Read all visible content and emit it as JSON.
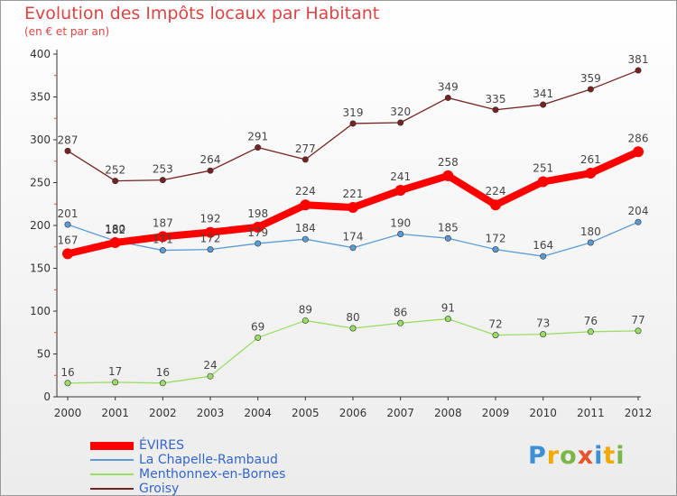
{
  "header": {
    "title": "Evolution des Impôts locaux par Habitant",
    "subtitle": "(en € et par an)"
  },
  "logo": {
    "text": "Proxiti",
    "colors": [
      "#3d8fd6",
      "#f2a900",
      "#7ab648",
      "#e5542b",
      "#3d8fd6",
      "#f2a900",
      "#7ab648"
    ]
  },
  "chart_data": {
    "type": "line",
    "title": "Evolution des Impôts locaux par Habitant",
    "subtitle": "(en € et par an)",
    "xlabel": "",
    "ylabel": "",
    "x": [
      "2000",
      "2001",
      "2002",
      "2003",
      "2004",
      "2005",
      "2006",
      "2007",
      "2008",
      "2009",
      "2010",
      "2011",
      "2012"
    ],
    "ylim": [
      0,
      400
    ],
    "yticks": [
      0,
      50,
      100,
      150,
      200,
      250,
      300,
      350,
      400
    ],
    "grid": false,
    "legend_position": "bottom-left",
    "series": [
      {
        "name": "ÉVIRES",
        "color": "#ff0000",
        "emphasis": true,
        "values": [
          167,
          180,
          187,
          192,
          198,
          224,
          221,
          241,
          258,
          224,
          251,
          261,
          286
        ]
      },
      {
        "name": "La Chapelle-Rambaud",
        "color": "#5b9bd5",
        "values": [
          201,
          182,
          171,
          172,
          179,
          184,
          174,
          190,
          185,
          172,
          164,
          180,
          204
        ]
      },
      {
        "name": "Menthonnex-en-Bornes",
        "color": "#99dd66",
        "values": [
          16,
          17,
          16,
          24,
          69,
          89,
          80,
          86,
          91,
          72,
          73,
          76,
          77
        ]
      },
      {
        "name": "Groisy",
        "color": "#772222",
        "values": [
          287,
          252,
          253,
          264,
          291,
          277,
          319,
          320,
          349,
          335,
          341,
          359,
          381
        ]
      }
    ]
  }
}
